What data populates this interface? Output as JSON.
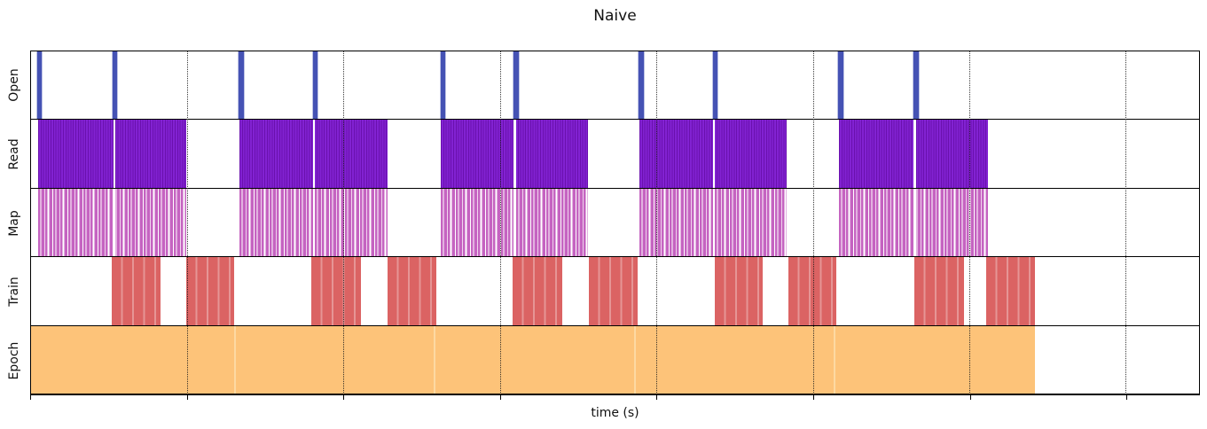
{
  "title": "Naive",
  "xlabel": "time (s)",
  "colors": {
    "open": "#4552b4",
    "read": "#7a1ec6",
    "read_stripe": "#6a10ae",
    "map": "#c563c1",
    "train": "#db6363",
    "train_stripe": "#e69595",
    "epoch": "#fdc379",
    "epoch_seam": "#fdd9a2",
    "grid": "#1a1a1a",
    "frame": "#000000"
  },
  "chart_data": {
    "type": "heatmap",
    "subtype": "event-timeline-gantt",
    "title": "Naive",
    "xlabel": "time (s)",
    "x_axis": {
      "label": "time (s)",
      "tick_labels_visible": false,
      "units": "fraction of plotted axis width (no numeric tick labels shown)",
      "tick_positions": [
        0,
        0.1339,
        0.2676,
        0.4015,
        0.5354,
        0.6694,
        0.8033,
        0.9372
      ],
      "gridlines": [
        0.1339,
        0.2676,
        0.4015,
        0.5354,
        0.6694,
        0.8033,
        0.9372
      ],
      "grid_style": "dotted"
    },
    "legend": "none",
    "rows": [
      {
        "label": "Open",
        "type": "open",
        "description": "10 narrow spike events, two per epoch",
        "bars": [
          {
            "x": 0.0053,
            "w": 0.004
          },
          {
            "x": 0.0698,
            "w": 0.004
          },
          {
            "x": 0.1779,
            "w": 0.004
          },
          {
            "x": 0.2412,
            "w": 0.004
          },
          {
            "x": 0.3508,
            "w": 0.004
          },
          {
            "x": 0.4133,
            "w": 0.004
          },
          {
            "x": 0.5203,
            "w": 0.004
          },
          {
            "x": 0.5836,
            "w": 0.004
          },
          {
            "x": 0.6913,
            "w": 0.004
          },
          {
            "x": 0.7558,
            "w": 0.004
          }
        ]
      },
      {
        "label": "Read",
        "type": "read",
        "description": "5 dense striped blocks, one per epoch, thin white gap under second Open spike",
        "bars": [
          {
            "x": 0.0057,
            "w": 0.1274,
            "gaps": [
              0.0705
            ]
          },
          {
            "x": 0.1786,
            "w": 0.1267,
            "gaps": [
              0.2412
            ]
          },
          {
            "x": 0.3508,
            "w": 0.1263,
            "gaps": [
              0.4133
            ]
          },
          {
            "x": 0.5207,
            "w": 0.1266,
            "gaps": [
              0.5836
            ]
          },
          {
            "x": 0.6921,
            "w": 0.1274,
            "gaps": [
              0.7558
            ]
          }
        ]
      },
      {
        "label": "Map",
        "type": "map",
        "description": "5 sparse striped blocks, same extents as Read blocks",
        "bars": [
          {
            "x": 0.0057,
            "w": 0.1274,
            "gaps": [
              0.0705
            ]
          },
          {
            "x": 0.1786,
            "w": 0.1267,
            "gaps": [
              0.2412
            ]
          },
          {
            "x": 0.3508,
            "w": 0.1263,
            "gaps": [
              0.4133
            ]
          },
          {
            "x": 0.5207,
            "w": 0.1266,
            "gaps": [
              0.5836
            ]
          },
          {
            "x": 0.6921,
            "w": 0.1274,
            "gaps": [
              0.7558
            ]
          }
        ]
      },
      {
        "label": "Train",
        "type": "train",
        "description": "10 solid blocks with lighter seams, two per epoch",
        "bars": [
          {
            "x": 0.069,
            "w": 0.0417
          },
          {
            "x": 0.1331,
            "w": 0.0406
          },
          {
            "x": 0.2401,
            "w": 0.0425
          },
          {
            "x": 0.3053,
            "w": 0.0417
          },
          {
            "x": 0.4122,
            "w": 0.0425
          },
          {
            "x": 0.4774,
            "w": 0.0417
          },
          {
            "x": 0.5851,
            "w": 0.0417
          },
          {
            "x": 0.6481,
            "w": 0.0417
          },
          {
            "x": 0.7565,
            "w": 0.0425
          },
          {
            "x": 0.818,
            "w": 0.0417
          }
        ]
      },
      {
        "label": "Epoch",
        "type": "epoch",
        "description": "single continuous block spanning 5 epochs with faint seams at epoch boundaries",
        "bars": [
          {
            "x": 0.0,
            "w": 0.8597
          }
        ],
        "seams": [
          0.1741,
          0.3451,
          0.5161,
          0.6868
        ]
      }
    ]
  }
}
